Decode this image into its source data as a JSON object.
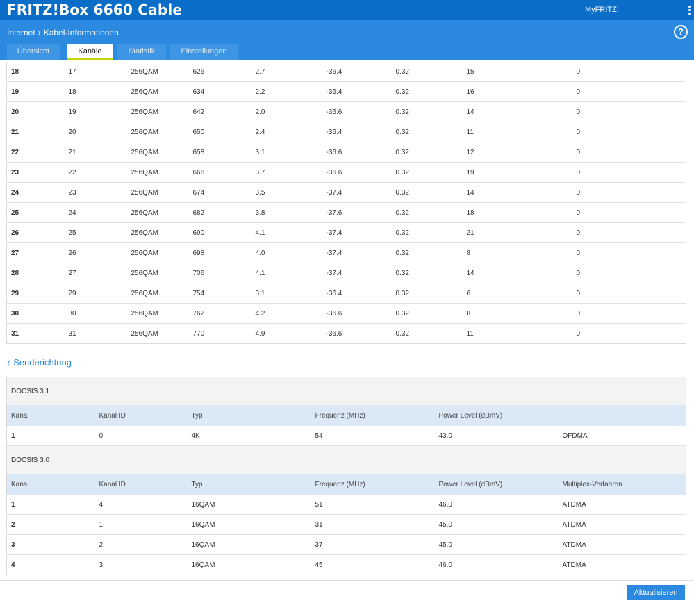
{
  "app": {
    "title": "FRITZ!Box 6660 Cable",
    "myfritz": "MyFRITZ!"
  },
  "breadcrumb": {
    "parent": "Internet",
    "separator": "›",
    "current": "Kabel-Informationen"
  },
  "help": {
    "label": "?"
  },
  "tabs": [
    {
      "label": "Übersicht",
      "active": false
    },
    {
      "label": "Kanäle",
      "active": true
    },
    {
      "label": "Statistik",
      "active": false
    },
    {
      "label": "Einstellungen",
      "active": false
    }
  ],
  "downstream_rows": [
    [
      "18",
      "17",
      "256QAM",
      "626",
      "2.7",
      "-36.4",
      "0.32",
      "15",
      "0"
    ],
    [
      "19",
      "18",
      "256QAM",
      "634",
      "2.2",
      "-36.4",
      "0.32",
      "16",
      "0"
    ],
    [
      "20",
      "19",
      "256QAM",
      "642",
      "2.0",
      "-36.6",
      "0.32",
      "14",
      "0"
    ],
    [
      "21",
      "20",
      "256QAM",
      "650",
      "2.4",
      "-36.4",
      "0.32",
      "11",
      "0"
    ],
    [
      "22",
      "21",
      "256QAM",
      "658",
      "3.1",
      "-36.6",
      "0.32",
      "12",
      "0"
    ],
    [
      "23",
      "22",
      "256QAM",
      "666",
      "3.7",
      "-36.6",
      "0.32",
      "19",
      "0"
    ],
    [
      "24",
      "23",
      "256QAM",
      "674",
      "3.5",
      "-37.4",
      "0.32",
      "14",
      "0"
    ],
    [
      "25",
      "24",
      "256QAM",
      "682",
      "3.8",
      "-37.6",
      "0.32",
      "18",
      "0"
    ],
    [
      "26",
      "25",
      "256QAM",
      "690",
      "4.1",
      "-37.4",
      "0.32",
      "21",
      "0"
    ],
    [
      "27",
      "26",
      "256QAM",
      "698",
      "4.0",
      "-37.4",
      "0.32",
      "8",
      "0"
    ],
    [
      "28",
      "27",
      "256QAM",
      "706",
      "4.1",
      "-37.4",
      "0.32",
      "14",
      "0"
    ],
    [
      "29",
      "29",
      "256QAM",
      "754",
      "3.1",
      "-36.4",
      "0.32",
      "6",
      "0"
    ],
    [
      "30",
      "30",
      "256QAM",
      "762",
      "4.2",
      "-36.6",
      "0.32",
      "8",
      "0"
    ],
    [
      "31",
      "31",
      "256QAM",
      "770",
      "4.9",
      "-36.6",
      "0.32",
      "11",
      "0"
    ]
  ],
  "upstream": {
    "section_title": "Senderichtung",
    "arrow": "↑",
    "groups": [
      {
        "title": "DOCSIS 3.1",
        "headers": [
          "Kanal",
          "Kanal ID",
          "Typ",
          "Frequenz (MHz)",
          "Power Level (dBmV)",
          ""
        ],
        "rows": [
          [
            "1",
            "0",
            "4K",
            "54",
            "43.0",
            "OFDMA"
          ]
        ]
      },
      {
        "title": "DOCSIS 3.0",
        "headers": [
          "Kanal",
          "Kanal ID",
          "Typ",
          "Frequenz (MHz)",
          "Power Level (dBmV)",
          "Multiplex-Verfahren"
        ],
        "rows": [
          [
            "1",
            "4",
            "16QAM",
            "51",
            "46.0",
            "ATDMA"
          ],
          [
            "2",
            "1",
            "16QAM",
            "31",
            "45.0",
            "ATDMA"
          ],
          [
            "3",
            "2",
            "16QAM",
            "37",
            "45.0",
            "ATDMA"
          ],
          [
            "4",
            "3",
            "16QAM",
            "45",
            "46.0",
            "ATDMA"
          ]
        ]
      }
    ]
  },
  "actions": {
    "refresh_label": "Aktualisieren"
  }
}
